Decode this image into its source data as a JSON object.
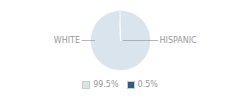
{
  "chart_data": {
    "type": "pie",
    "categories": [
      "WHITE",
      "HISPANIC"
    ],
    "values": [
      99.5,
      0.5
    ],
    "value_labels": [
      "99.5%",
      "0.5%"
    ],
    "colors": [
      "#d9e4ed",
      "#2d5f7c"
    ],
    "legend": "bottom"
  }
}
